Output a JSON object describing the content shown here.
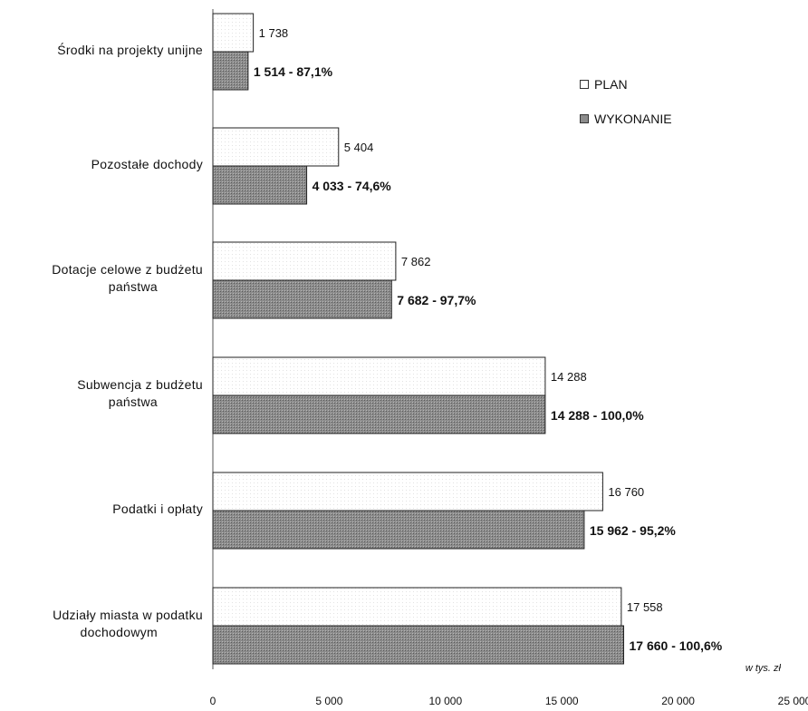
{
  "chart_data": {
    "type": "bar",
    "orientation": "horizontal",
    "categories": [
      [
        "Środki na projekty unijne"
      ],
      [
        "Pozostałe dochody"
      ],
      [
        "Dotacje celowe z budżetu",
        "państwa"
      ],
      [
        "Subwencja z budżetu",
        "państwa"
      ],
      [
        "Podatki i opłaty"
      ],
      [
        "Udziały miasta w podatku",
        "dochodowym"
      ]
    ],
    "series": [
      {
        "name": "PLAN",
        "color": "#ffffff",
        "values": [
          1738,
          5404,
          7862,
          14288,
          16760,
          17558
        ],
        "labels": [
          "1 738",
          "5 404",
          "7 862",
          "14 288",
          "16 760",
          "17 558"
        ]
      },
      {
        "name": "WYKONANIE",
        "color": "#8c8c8c",
        "values": [
          1514,
          4033,
          7682,
          14288,
          15962,
          17660
        ],
        "labels": [
          "1 514 - 87,1%",
          "4 033 - 74,6%",
          "7 682 - 97,7%",
          "14 288 - 100,0%",
          "15 962 - 95,2%",
          "17 660 - 100,6%"
        ]
      }
    ],
    "xlim": [
      0,
      25000
    ],
    "x_ticks": [
      0,
      5000,
      10000,
      15000,
      20000,
      25000
    ],
    "x_tick_labels": [
      "0",
      "5 000",
      "10 000",
      "15 000",
      "20 000",
      "25 000"
    ],
    "unit_label": "w tys. zł",
    "legend_position": "right"
  }
}
